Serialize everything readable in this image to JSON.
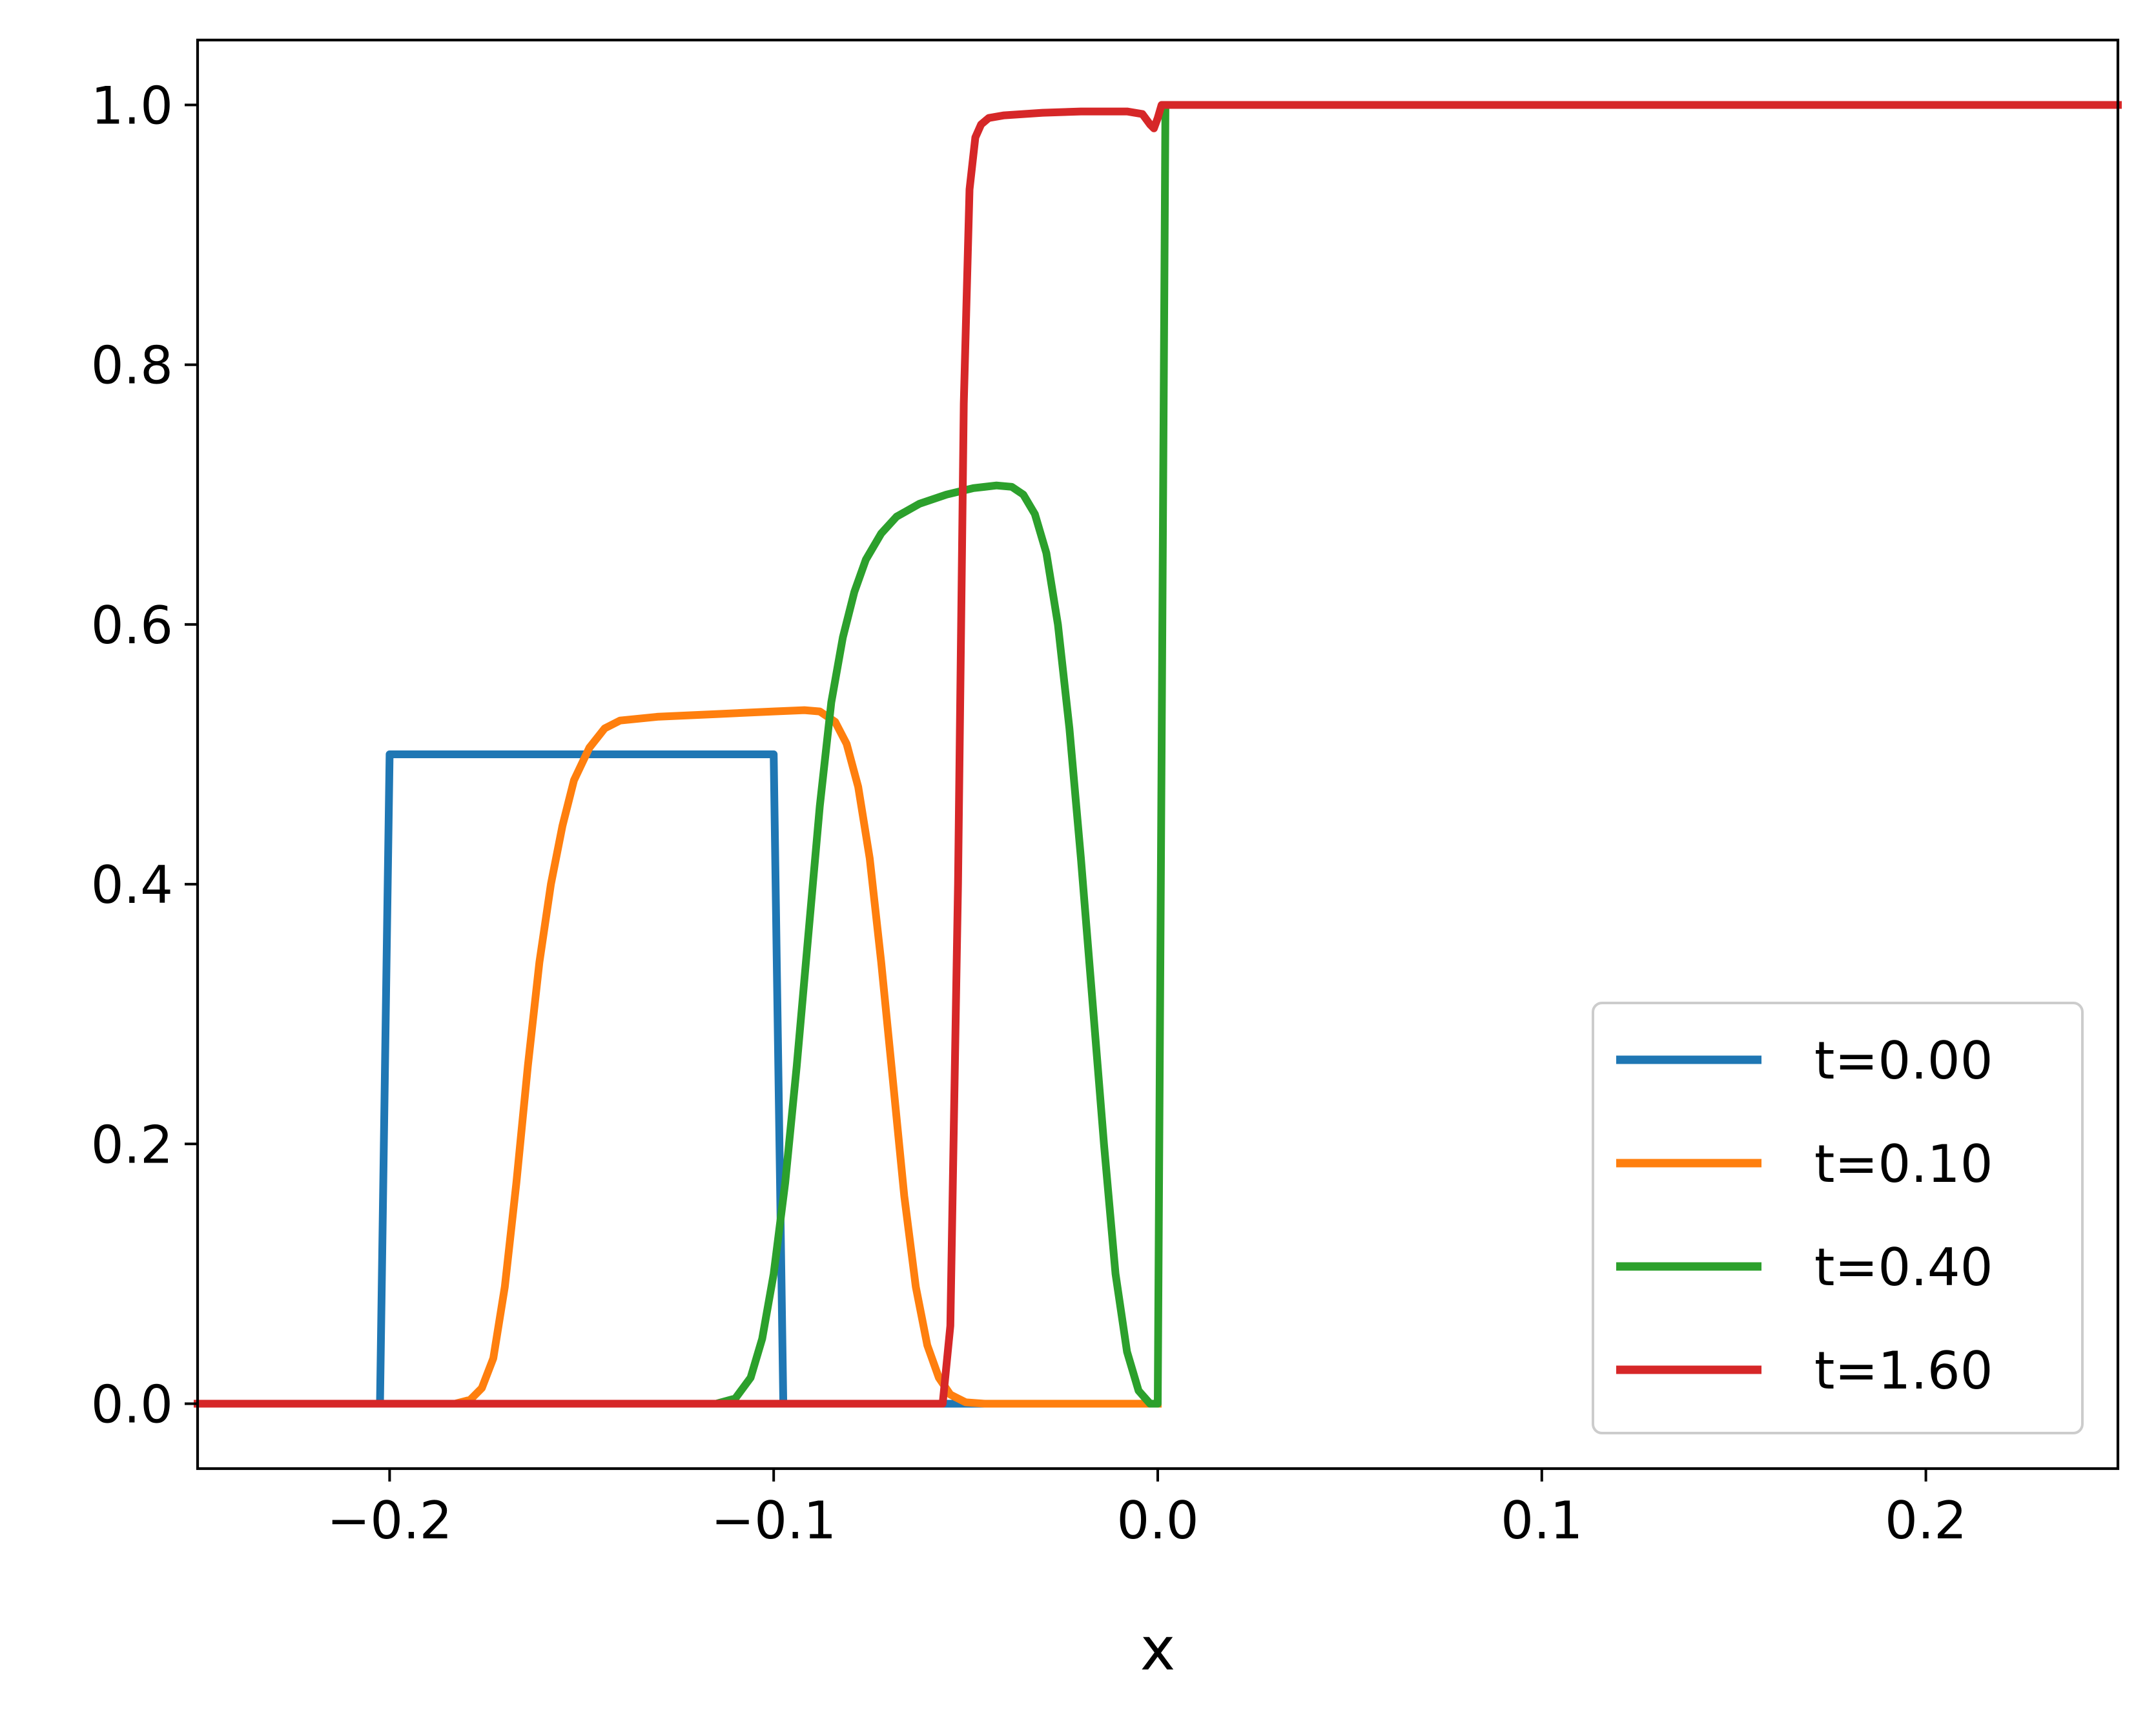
{
  "chart_data": {
    "type": "line",
    "title": "",
    "xlabel": "x",
    "ylabel": "",
    "xlim": [
      -0.25,
      0.25
    ],
    "ylim": [
      -0.05,
      1.05
    ],
    "xticks": [
      -0.2,
      -0.1,
      0.0,
      0.1,
      0.2
    ],
    "xtick_labels": [
      "−0.2",
      "−0.1",
      "0.0",
      "0.1",
      "0.2"
    ],
    "yticks": [
      0.0,
      0.2,
      0.4,
      0.6,
      0.8,
      1.0
    ],
    "ytick_labels": [
      "0.0",
      "0.2",
      "0.4",
      "0.6",
      "0.8",
      "1.0"
    ],
    "grid": false,
    "legend_position": "lower-right",
    "series": [
      {
        "name": "t=0.00",
        "color": "#1f77b4",
        "points": [
          [
            -0.25,
            0
          ],
          [
            -0.2025,
            0
          ],
          [
            -0.2,
            0.5
          ],
          [
            -0.1,
            0.5
          ],
          [
            -0.0975,
            0
          ],
          [
            0.0,
            0
          ]
        ]
      },
      {
        "name": "t=0.10",
        "color": "#ff7f0e",
        "points": [
          [
            -0.25,
            0
          ],
          [
            -0.183,
            0
          ],
          [
            -0.179,
            0.003
          ],
          [
            -0.176,
            0.012
          ],
          [
            -0.173,
            0.035
          ],
          [
            -0.17,
            0.09
          ],
          [
            -0.167,
            0.17
          ],
          [
            -0.164,
            0.26
          ],
          [
            -0.161,
            0.34
          ],
          [
            -0.158,
            0.4
          ],
          [
            -0.155,
            0.445
          ],
          [
            -0.152,
            0.48
          ],
          [
            -0.148,
            0.505
          ],
          [
            -0.144,
            0.52
          ],
          [
            -0.14,
            0.526
          ],
          [
            -0.13,
            0.529
          ],
          [
            -0.115,
            0.531
          ],
          [
            -0.1,
            0.533
          ],
          [
            -0.092,
            0.534
          ],
          [
            -0.088,
            0.533
          ],
          [
            -0.084,
            0.525
          ],
          [
            -0.081,
            0.508
          ],
          [
            -0.078,
            0.475
          ],
          [
            -0.075,
            0.42
          ],
          [
            -0.072,
            0.34
          ],
          [
            -0.069,
            0.25
          ],
          [
            -0.066,
            0.16
          ],
          [
            -0.063,
            0.09
          ],
          [
            -0.06,
            0.045
          ],
          [
            -0.057,
            0.02
          ],
          [
            -0.054,
            0.007
          ],
          [
            -0.05,
            0.001
          ],
          [
            -0.045,
            0
          ],
          [
            0.0,
            0
          ]
        ]
      },
      {
        "name": "t=0.40",
        "color": "#2ca02c",
        "points": [
          [
            -0.25,
            0
          ],
          [
            -0.115,
            0
          ],
          [
            -0.11,
            0.004
          ],
          [
            -0.106,
            0.02
          ],
          [
            -0.103,
            0.05
          ],
          [
            -0.1,
            0.1
          ],
          [
            -0.097,
            0.17
          ],
          [
            -0.094,
            0.26
          ],
          [
            -0.091,
            0.36
          ],
          [
            -0.088,
            0.46
          ],
          [
            -0.085,
            0.54
          ],
          [
            -0.082,
            0.59
          ],
          [
            -0.079,
            0.625
          ],
          [
            -0.076,
            0.65
          ],
          [
            -0.072,
            0.67
          ],
          [
            -0.068,
            0.683
          ],
          [
            -0.062,
            0.693
          ],
          [
            -0.055,
            0.7
          ],
          [
            -0.048,
            0.705
          ],
          [
            -0.042,
            0.707
          ],
          [
            -0.038,
            0.706
          ],
          [
            -0.035,
            0.7
          ],
          [
            -0.032,
            0.685
          ],
          [
            -0.029,
            0.655
          ],
          [
            -0.026,
            0.6
          ],
          [
            -0.023,
            0.52
          ],
          [
            -0.02,
            0.42
          ],
          [
            -0.017,
            0.31
          ],
          [
            -0.014,
            0.2
          ],
          [
            -0.011,
            0.1
          ],
          [
            -0.008,
            0.04
          ],
          [
            -0.005,
            0.01
          ],
          [
            -0.002,
            0
          ],
          [
            0.0,
            0
          ],
          [
            0.002,
            1.0
          ],
          [
            0.25,
            1.0
          ]
        ]
      },
      {
        "name": "t=1.60",
        "color": "#d62728",
        "points": [
          [
            -0.25,
            0
          ],
          [
            -0.056,
            0
          ],
          [
            -0.054,
            0.06
          ],
          [
            -0.052,
            0.4
          ],
          [
            -0.0505,
            0.77
          ],
          [
            -0.049,
            0.935
          ],
          [
            -0.0475,
            0.975
          ],
          [
            -0.046,
            0.985
          ],
          [
            -0.044,
            0.99
          ],
          [
            -0.04,
            0.992
          ],
          [
            -0.03,
            0.994
          ],
          [
            -0.02,
            0.995
          ],
          [
            -0.008,
            0.995
          ],
          [
            -0.004,
            0.993
          ],
          [
            -0.002,
            0.985
          ],
          [
            -0.001,
            0.982
          ],
          [
            0.0,
            0.99
          ],
          [
            0.001,
            1.0
          ],
          [
            0.25,
            1.0
          ]
        ]
      }
    ]
  }
}
